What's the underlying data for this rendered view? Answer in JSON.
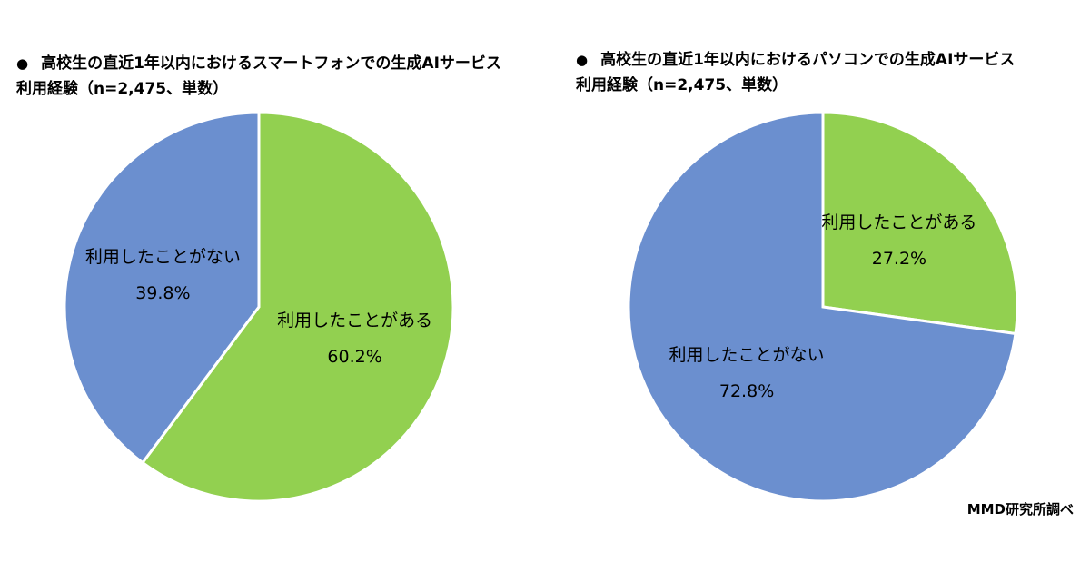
{
  "colors": {
    "used": "#92d050",
    "not_used": "#6b8fcf",
    "stroke": "#ffffff"
  },
  "chart_data": [
    {
      "type": "pie",
      "title_bullet": "●",
      "title_line1": "高校生の直近1年以内におけるスマートフォンでの生成AIサービス",
      "title_line2": "利用経験（n=2,475、単数）",
      "slices": [
        {
          "label": "利用したことがある",
          "value": 60.2,
          "value_text": "60.2%"
        },
        {
          "label": "利用したことがない",
          "value": 39.8,
          "value_text": "39.8%"
        }
      ]
    },
    {
      "type": "pie",
      "title_bullet": "●",
      "title_line1": "高校生の直近1年以内におけるパソコンでの生成AIサービス",
      "title_line2": "利用経験（n=2,475、単数）",
      "slices": [
        {
          "label": "利用したことがある",
          "value": 27.2,
          "value_text": "27.2%"
        },
        {
          "label": "利用したことがない",
          "value": 72.8,
          "value_text": "72.8%"
        }
      ]
    }
  ],
  "source": "MMD研究所調べ"
}
